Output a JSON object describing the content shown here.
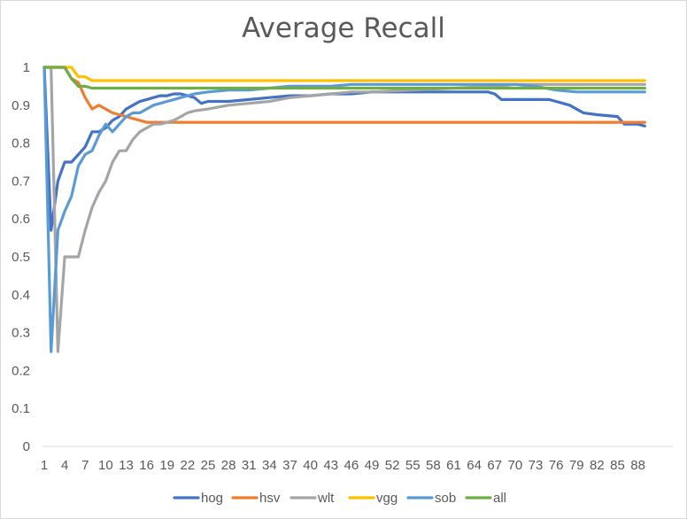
{
  "chart_data": {
    "type": "line",
    "title": "Average Recall",
    "xlabel": "",
    "ylabel": "",
    "ylim": [
      0,
      1
    ],
    "xlim": [
      1,
      90
    ],
    "yticks": [
      "0",
      "0.1",
      "0.2",
      "0.3",
      "0.4",
      "0.5",
      "0.6",
      "0.7",
      "0.8",
      "0.9",
      "1"
    ],
    "xticks": [
      1,
      4,
      7,
      10,
      13,
      16,
      19,
      22,
      25,
      28,
      31,
      34,
      37,
      40,
      43,
      46,
      49,
      52,
      55,
      58,
      61,
      64,
      67,
      70,
      73,
      76,
      79,
      82,
      85,
      88
    ],
    "legend_position": "bottom",
    "series": [
      {
        "name": "hog",
        "color": "#4472c4",
        "points": [
          [
            1,
            1
          ],
          [
            2,
            0.57
          ],
          [
            3,
            0.7
          ],
          [
            4,
            0.75
          ],
          [
            5,
            0.75
          ],
          [
            6,
            0.77
          ],
          [
            7,
            0.79
          ],
          [
            8,
            0.83
          ],
          [
            9,
            0.83
          ],
          [
            10,
            0.84
          ],
          [
            11,
            0.86
          ],
          [
            12,
            0.87
          ],
          [
            13,
            0.89
          ],
          [
            14,
            0.9
          ],
          [
            15,
            0.91
          ],
          [
            16,
            0.915
          ],
          [
            17,
            0.92
          ],
          [
            18,
            0.925
          ],
          [
            19,
            0.925
          ],
          [
            20,
            0.93
          ],
          [
            21,
            0.93
          ],
          [
            22,
            0.925
          ],
          [
            23,
            0.92
          ],
          [
            24,
            0.905
          ],
          [
            25,
            0.91
          ],
          [
            28,
            0.91
          ],
          [
            31,
            0.915
          ],
          [
            34,
            0.92
          ],
          [
            37,
            0.925
          ],
          [
            40,
            0.925
          ],
          [
            43,
            0.93
          ],
          [
            46,
            0.93
          ],
          [
            49,
            0.935
          ],
          [
            52,
            0.935
          ],
          [
            55,
            0.935
          ],
          [
            58,
            0.935
          ],
          [
            61,
            0.935
          ],
          [
            64,
            0.935
          ],
          [
            66,
            0.935
          ],
          [
            67,
            0.93
          ],
          [
            68,
            0.915
          ],
          [
            70,
            0.915
          ],
          [
            73,
            0.915
          ],
          [
            75,
            0.915
          ],
          [
            76,
            0.91
          ],
          [
            78,
            0.9
          ],
          [
            80,
            0.88
          ],
          [
            82,
            0.875
          ],
          [
            85,
            0.87
          ],
          [
            86,
            0.85
          ],
          [
            88,
            0.85
          ],
          [
            89,
            0.845
          ]
        ]
      },
      {
        "name": "hsv",
        "color": "#ed7d31",
        "points": [
          [
            1,
            1
          ],
          [
            2,
            1
          ],
          [
            3,
            1
          ],
          [
            4,
            1
          ],
          [
            5,
            0.97
          ],
          [
            6,
            0.96
          ],
          [
            7,
            0.92
          ],
          [
            8,
            0.89
          ],
          [
            9,
            0.9
          ],
          [
            10,
            0.89
          ],
          [
            11,
            0.88
          ],
          [
            12,
            0.875
          ],
          [
            13,
            0.87
          ],
          [
            14,
            0.865
          ],
          [
            15,
            0.86
          ],
          [
            16,
            0.855
          ],
          [
            19,
            0.855
          ],
          [
            25,
            0.855
          ],
          [
            40,
            0.855
          ],
          [
            55,
            0.855
          ],
          [
            70,
            0.855
          ],
          [
            85,
            0.855
          ],
          [
            89,
            0.855
          ]
        ]
      },
      {
        "name": "wlt",
        "color": "#a5a5a5",
        "points": [
          [
            1,
            1
          ],
          [
            2,
            1
          ],
          [
            3,
            0.25
          ],
          [
            4,
            0.5
          ],
          [
            5,
            0.5
          ],
          [
            6,
            0.5
          ],
          [
            7,
            0.57
          ],
          [
            8,
            0.63
          ],
          [
            9,
            0.67
          ],
          [
            10,
            0.7
          ],
          [
            11,
            0.75
          ],
          [
            12,
            0.78
          ],
          [
            13,
            0.78
          ],
          [
            14,
            0.81
          ],
          [
            15,
            0.83
          ],
          [
            16,
            0.84
          ],
          [
            17,
            0.85
          ],
          [
            18,
            0.85
          ],
          [
            19,
            0.855
          ],
          [
            20,
            0.86
          ],
          [
            21,
            0.87
          ],
          [
            22,
            0.88
          ],
          [
            23,
            0.885
          ],
          [
            25,
            0.89
          ],
          [
            28,
            0.9
          ],
          [
            31,
            0.905
          ],
          [
            34,
            0.91
          ],
          [
            37,
            0.92
          ],
          [
            40,
            0.925
          ],
          [
            43,
            0.93
          ],
          [
            46,
            0.935
          ],
          [
            49,
            0.935
          ],
          [
            55,
            0.94
          ],
          [
            61,
            0.945
          ],
          [
            67,
            0.95
          ],
          [
            70,
            0.955
          ],
          [
            73,
            0.955
          ],
          [
            76,
            0.955
          ],
          [
            82,
            0.955
          ],
          [
            89,
            0.955
          ]
        ]
      },
      {
        "name": "vgg",
        "color": "#ffc000",
        "points": [
          [
            1,
            1
          ],
          [
            2,
            1
          ],
          [
            3,
            1
          ],
          [
            4,
            1
          ],
          [
            5,
            1
          ],
          [
            6,
            0.975
          ],
          [
            7,
            0.975
          ],
          [
            8,
            0.965
          ],
          [
            10,
            0.965
          ],
          [
            20,
            0.965
          ],
          [
            40,
            0.965
          ],
          [
            60,
            0.965
          ],
          [
            89,
            0.965
          ]
        ]
      },
      {
        "name": "sob",
        "color": "#5b9bd5",
        "points": [
          [
            1,
            1
          ],
          [
            2,
            0.25
          ],
          [
            3,
            0.57
          ],
          [
            4,
            0.62
          ],
          [
            5,
            0.66
          ],
          [
            6,
            0.74
          ],
          [
            7,
            0.77
          ],
          [
            8,
            0.78
          ],
          [
            9,
            0.82
          ],
          [
            10,
            0.85
          ],
          [
            11,
            0.83
          ],
          [
            12,
            0.85
          ],
          [
            13,
            0.87
          ],
          [
            14,
            0.88
          ],
          [
            15,
            0.88
          ],
          [
            16,
            0.89
          ],
          [
            17,
            0.9
          ],
          [
            18,
            0.905
          ],
          [
            19,
            0.91
          ],
          [
            20,
            0.915
          ],
          [
            21,
            0.92
          ],
          [
            22,
            0.925
          ],
          [
            23,
            0.93
          ],
          [
            25,
            0.935
          ],
          [
            28,
            0.94
          ],
          [
            31,
            0.94
          ],
          [
            34,
            0.945
          ],
          [
            37,
            0.95
          ],
          [
            40,
            0.95
          ],
          [
            43,
            0.95
          ],
          [
            46,
            0.955
          ],
          [
            52,
            0.955
          ],
          [
            58,
            0.955
          ],
          [
            64,
            0.955
          ],
          [
            70,
            0.955
          ],
          [
            73,
            0.95
          ],
          [
            76,
            0.94
          ],
          [
            79,
            0.935
          ],
          [
            85,
            0.935
          ],
          [
            89,
            0.935
          ]
        ]
      },
      {
        "name": "all",
        "color": "#70ad47",
        "points": [
          [
            1,
            1
          ],
          [
            2,
            1
          ],
          [
            3,
            1
          ],
          [
            4,
            1
          ],
          [
            5,
            0.97
          ],
          [
            6,
            0.95
          ],
          [
            7,
            0.95
          ],
          [
            8,
            0.945
          ],
          [
            10,
            0.945
          ],
          [
            20,
            0.945
          ],
          [
            40,
            0.945
          ],
          [
            60,
            0.945
          ],
          [
            89,
            0.945
          ]
        ]
      }
    ]
  }
}
